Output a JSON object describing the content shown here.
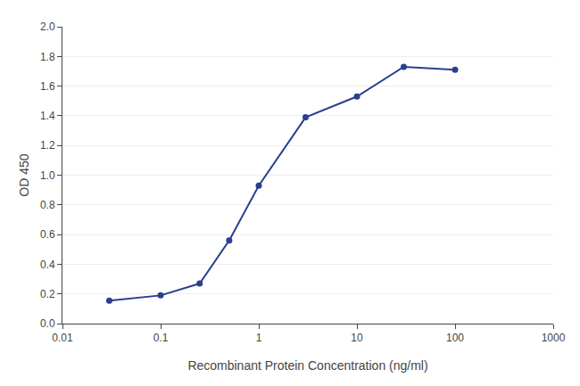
{
  "chart_data": {
    "type": "line",
    "x": [
      0.03,
      0.1,
      0.25,
      0.5,
      1.0,
      3.0,
      10.0,
      30.0,
      100.0
    ],
    "values": [
      0.155,
      0.19,
      0.27,
      0.56,
      0.93,
      1.39,
      1.53,
      1.73,
      1.71
    ],
    "color": "#2a3f8f",
    "marker": "circle",
    "xlabel": "Recombinant Protein Concentration (ng/ml)",
    "ylabel": "OD 450",
    "log": "x",
    "xlim": [
      0.01,
      1000
    ],
    "xticks": [
      0.01,
      0.1,
      1,
      10,
      100,
      1000
    ],
    "ylim": [
      0,
      2.0
    ],
    "yticks": [
      {
        "value": 0,
        "label": "0.0"
      },
      0.2,
      0.4,
      0.6,
      0.8,
      {
        "value": 1.0,
        "label": "1.0"
      },
      1.2,
      1.4,
      1.6,
      1.8,
      {
        "value": 2.0,
        "label": "2.0"
      }
    ],
    "grid": "y"
  }
}
